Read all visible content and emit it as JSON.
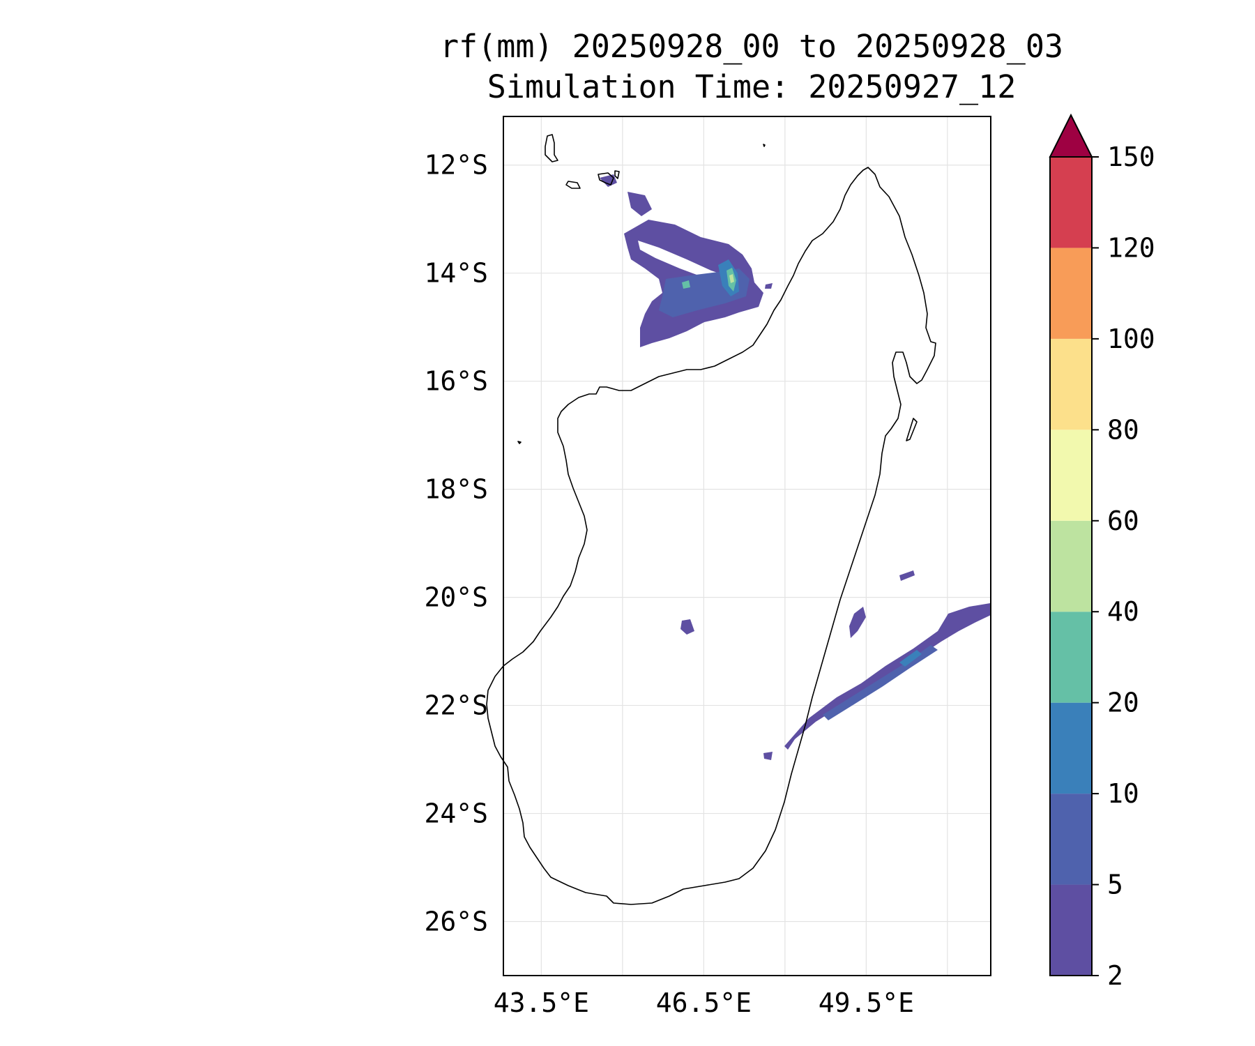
{
  "title": {
    "line1": "rf(mm) 20250928_00 to 20250928_03",
    "line2": "Simulation Time: 20250927_12"
  },
  "map": {
    "region": "Madagascar",
    "lon_range": [
      42.8,
      51.8
    ],
    "lat_range": [
      -27.0,
      -11.1
    ],
    "lat_ticks": [
      {
        "value": -12,
        "label": "12°S"
      },
      {
        "value": -14,
        "label": "14°S"
      },
      {
        "value": -16,
        "label": "16°S"
      },
      {
        "value": -18,
        "label": "18°S"
      },
      {
        "value": -20,
        "label": "20°S"
      },
      {
        "value": -22,
        "label": "22°S"
      },
      {
        "value": -24,
        "label": "24°S"
      },
      {
        "value": -26,
        "label": "26°S"
      }
    ],
    "lon_ticks": [
      {
        "value": 43.5,
        "label": "43.5°E"
      },
      {
        "value": 46.5,
        "label": "46.5°E"
      },
      {
        "value": 49.5,
        "label": "49.5°E"
      }
    ],
    "gridlines": true
  },
  "colorbar": {
    "extend": "max",
    "levels": [
      {
        "label": "2",
        "color": "#5e4fa2"
      },
      {
        "label": "5",
        "color": "#4f62ad"
      },
      {
        "label": "10",
        "color": "#3a80ba"
      },
      {
        "label": "20",
        "color": "#65c0a6"
      },
      {
        "label": "40",
        "color": "#bde3a0"
      },
      {
        "label": "60",
        "color": "#f2f9ae"
      },
      {
        "label": "80",
        "color": "#fce08b"
      },
      {
        "label": "100",
        "color": "#f89c58"
      },
      {
        "label": "120",
        "color": "#d53f50"
      },
      {
        "label": "150",
        "color": "#9e0142"
      }
    ]
  },
  "rain_areas": [
    {
      "name": "northwest-rain-cluster",
      "level": "2-5"
    },
    {
      "name": "northwest-rain-core",
      "level": "10-20"
    },
    {
      "name": "southeast-rain-band",
      "level": "2-5"
    },
    {
      "name": "southeast-rain-core",
      "level": "10-20"
    }
  ]
}
